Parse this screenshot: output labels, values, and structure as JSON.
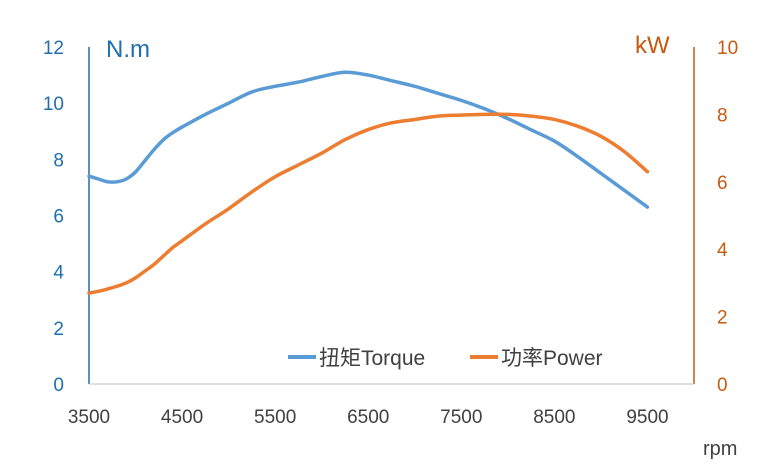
{
  "chart_data": {
    "type": "line",
    "x": [
      3500,
      3600,
      3700,
      3800,
      3900,
      4000,
      4100,
      4200,
      4300,
      4400,
      4500,
      4750,
      5000,
      5250,
      5500,
      5750,
      6000,
      6250,
      6500,
      6750,
      7000,
      7250,
      7500,
      7750,
      8000,
      8250,
      8500,
      8750,
      9000,
      9250,
      9500
    ],
    "xlabel": "rpm",
    "xticks": [
      "3500",
      "4500",
      "5500",
      "6500",
      "7500",
      "8500",
      "9500"
    ],
    "xlim": [
      3500,
      10000
    ],
    "y_left": {
      "label": "N.m",
      "ylim": [
        0,
        12
      ],
      "ticks": [
        "0",
        "2",
        "4",
        "6",
        "8",
        "10",
        "12"
      ],
      "color": "#1f6fad"
    },
    "y_right": {
      "label": "kW",
      "ylim": [
        0,
        10
      ],
      "ticks": [
        "0",
        "2",
        "4",
        "6",
        "8",
        "10"
      ],
      "color": "#c65a11"
    },
    "series": [
      {
        "name": "扭矩Torque",
        "axis": "left",
        "color": "#5b9bd5",
        "values": [
          7.4,
          7.3,
          7.2,
          7.2,
          7.3,
          7.55,
          7.95,
          8.35,
          8.7,
          8.95,
          9.15,
          9.6,
          10.0,
          10.4,
          10.6,
          10.75,
          10.95,
          11.1,
          11.0,
          10.8,
          10.6,
          10.35,
          10.1,
          9.8,
          9.45,
          9.05,
          8.65,
          8.1,
          7.5,
          6.9,
          6.3
        ]
      },
      {
        "name": "功率Power",
        "axis": "right",
        "color": "#ed7d31",
        "values": [
          2.7,
          2.75,
          2.82,
          2.9,
          3.0,
          3.15,
          3.35,
          3.55,
          3.8,
          4.05,
          4.25,
          4.75,
          5.2,
          5.7,
          6.15,
          6.5,
          6.85,
          7.25,
          7.55,
          7.75,
          7.85,
          7.95,
          7.98,
          8.0,
          8.0,
          7.95,
          7.85,
          7.65,
          7.35,
          6.9,
          6.3
        ]
      }
    ],
    "legend_position": "bottom-right",
    "grid": false
  }
}
